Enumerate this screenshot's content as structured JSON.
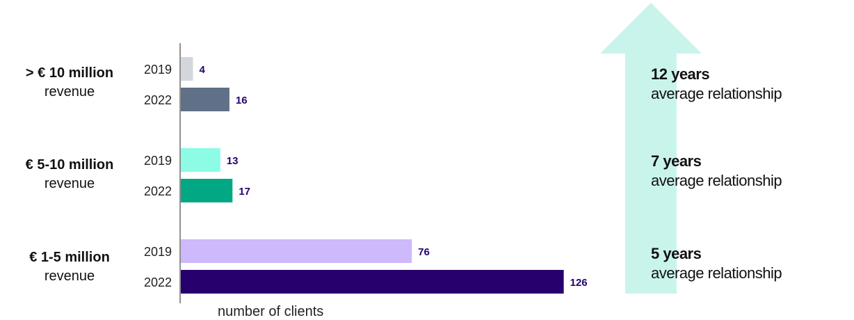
{
  "chart_data": {
    "type": "bar",
    "orientation": "horizontal",
    "xlabel": "number of clients",
    "groups": [
      {
        "title": "> € 10 million",
        "subtitle": "revenue",
        "relationship_years": "12 years",
        "relationship_text": "average relationship",
        "bars": [
          {
            "year": "2019",
            "value": 4,
            "color": "#d3d7dd"
          },
          {
            "year": "2022",
            "value": 16,
            "color": "#5f7087"
          }
        ]
      },
      {
        "title": "€ 5-10 million",
        "subtitle": "revenue",
        "relationship_years": "7 years",
        "relationship_text": "average relationship",
        "bars": [
          {
            "year": "2019",
            "value": 13,
            "color": "#8cfce4"
          },
          {
            "year": "2022",
            "value": 17,
            "color": "#02a784"
          }
        ]
      },
      {
        "title": "€ 1-5 million",
        "subtitle": "revenue",
        "relationship_years": "5 years",
        "relationship_text": "average relationship",
        "bars": [
          {
            "year": "2019",
            "value": 76,
            "color": "#cdb9fb"
          },
          {
            "year": "2022",
            "value": 126,
            "color": "#27006e"
          }
        ]
      }
    ],
    "value_label_color": "#27006e",
    "arrow_color": "#c9f4ec",
    "grid": false,
    "legend": "none"
  }
}
